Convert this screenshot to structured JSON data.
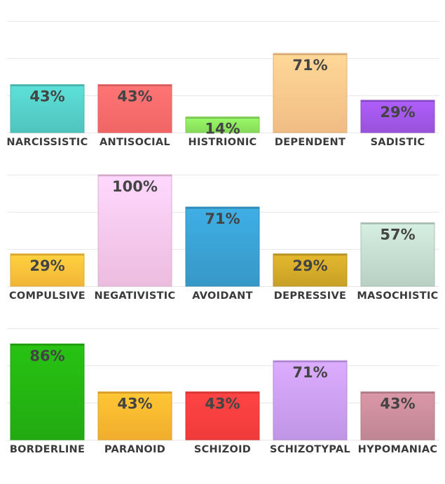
{
  "chart_data": [
    {
      "type": "bar",
      "categories": [
        "NARCISSISTIC",
        "ANTISOCIAL",
        "HISTRIONIC",
        "DEPENDENT",
        "SADISTIC"
      ],
      "values": [
        43,
        43,
        14,
        71,
        29
      ],
      "labels": [
        "43%",
        "43%",
        "14%",
        "71%",
        "29%"
      ],
      "colors": [
        "#55d0c9",
        "#ff6b6b",
        "#8fe860",
        "#ffc88c",
        "#a257e8"
      ],
      "ylim": [
        0,
        100
      ],
      "grid": true
    },
    {
      "type": "bar",
      "categories": [
        "COMPULSIVE",
        "NEGATIVISTIC",
        "AVOIDANT",
        "DEPRESSIVE",
        "MASOCHISTIC"
      ],
      "values": [
        29,
        100,
        71,
        29,
        57
      ],
      "labels": [
        "29%",
        "100%",
        "71%",
        "29%",
        "57%"
      ],
      "colors": [
        "#ffc23a",
        "#fbc8ec",
        "#3aa2d4",
        "#d4aa2a",
        "#c5ddd1"
      ],
      "ylim": [
        0,
        100
      ],
      "grid": true
    },
    {
      "type": "bar",
      "categories": [
        "BORDERLINE",
        "PARANOID",
        "SCHIZOID",
        "SCHIZOTYPAL",
        "HYPOMANIAC"
      ],
      "values": [
        86,
        43,
        43,
        71,
        43
      ],
      "labels": [
        "86%",
        "43%",
        "43%",
        "71%",
        "43%"
      ],
      "colors": [
        "#24b512",
        "#ffb830",
        "#ff3f3f",
        "#cc9ff5",
        "#cb8d9b"
      ],
      "ylim": [
        0,
        100
      ],
      "grid": true
    }
  ]
}
